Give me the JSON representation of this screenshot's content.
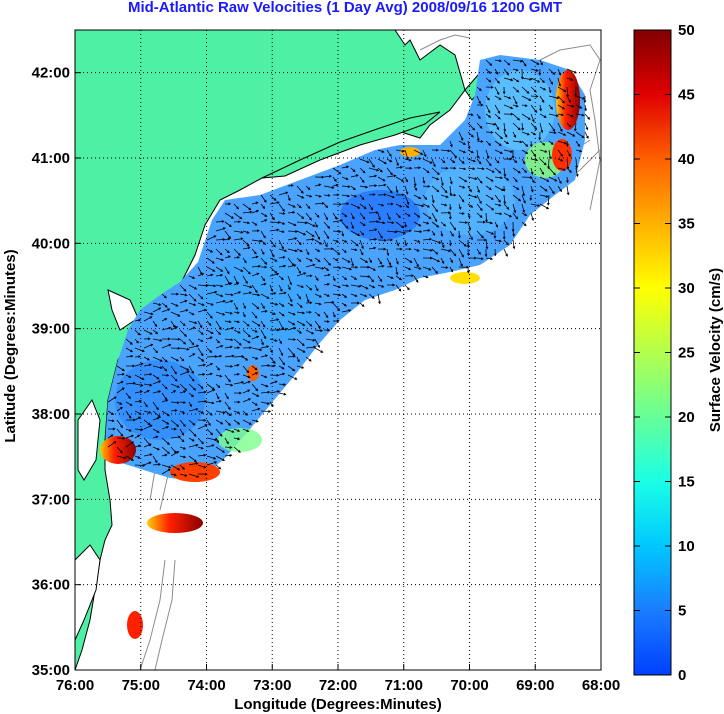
{
  "title": "Mid-Atlantic Raw Velocities (1 Day Avg) 2008/09/16 1200 GMT",
  "map": {
    "x_axis": {
      "label": "Longitude (Degrees:Minutes)",
      "ticks": [
        "76:00",
        "75:00",
        "74:00",
        "73:00",
        "72:00",
        "71:00",
        "70:00",
        "69:00",
        "68:00"
      ]
    },
    "y_axis": {
      "label": "Latitude (Degrees:Minutes)",
      "ticks": [
        "42:00",
        "41:00",
        "40:00",
        "39:00",
        "38:00",
        "37:00",
        "36:00",
        "35:00"
      ]
    },
    "lon_range": [
      -76,
      -68
    ],
    "lat_range": [
      35,
      42.5
    ],
    "colors": {
      "land": "#4ef0a4",
      "ocean": "#ffffff",
      "coastline": "#000000",
      "grid": "#000000",
      "bathymetry": "#8c8c8c",
      "vectors": "#000000"
    }
  },
  "colorbar": {
    "label": "Surface Velocity (cm/s)",
    "ticks": [
      "50",
      "45",
      "40",
      "35",
      "30",
      "25",
      "20",
      "15",
      "10",
      "5",
      "0"
    ],
    "min": 0,
    "max": 50,
    "unit": "cm/s",
    "colormap": "jet"
  }
}
